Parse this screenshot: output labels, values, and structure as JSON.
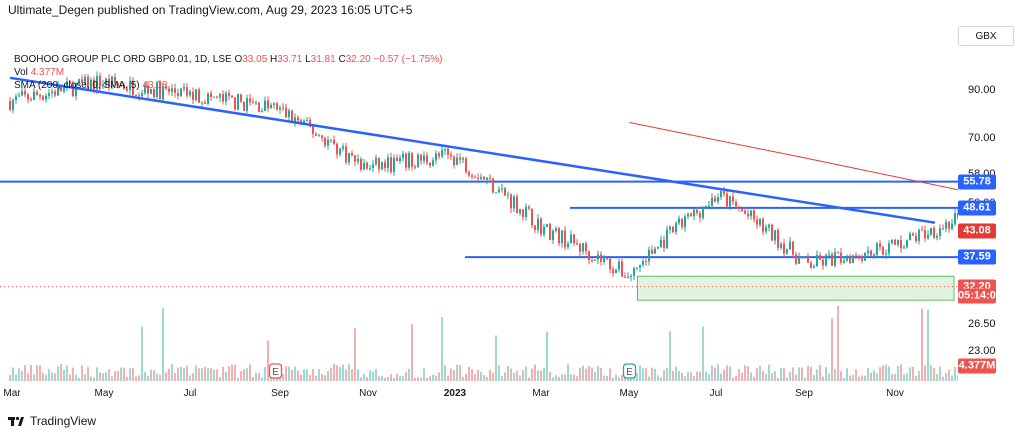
{
  "header": {
    "publisher": "Ultimate_Degen published on TradingView.com, Aug 29, 2023 16:05 UTC+5"
  },
  "legend": {
    "symbol": "BOOHOO GROUP PLC ORD GBP0.01, 1D, LSE",
    "open_label": "O",
    "open": "33.05",
    "high_label": "H",
    "high": "33.71",
    "low_label": "L",
    "low": "31.81",
    "close_label": "C",
    "close": "32.20",
    "change": "−0.57 (−1.75%)",
    "vol_label": "Vol",
    "vol": "4.377M",
    "sma_label": "SMA (200, close, 0, SMA, 5)",
    "sma": "43.08"
  },
  "currency": "GBX",
  "footer": {
    "brand": "TradingView"
  },
  "colors": {
    "up": "#26a69a",
    "down": "#ef5350",
    "trendline": "#2962ff",
    "sma": "#e53935",
    "zone_fill": "#dff3de",
    "zone_border": "#66bb6a"
  },
  "chart_data": {
    "type": "candlestick",
    "title": "BOOHOO GROUP PLC ORD GBP0.01, 1D, LSE",
    "yaxis": {
      "scale": "log",
      "range": [
        20.5,
        120
      ],
      "ticks": [
        "90.00",
        "70.00",
        "58.00",
        "50.00",
        "43.08",
        "30.00",
        "26.50",
        "23.00"
      ]
    },
    "xaxis": {
      "ticks": [
        "Mar",
        "May",
        "Jul",
        "Sep",
        "Nov",
        "2023",
        "Mar",
        "May",
        "Jul",
        "Sep",
        "Nov"
      ]
    },
    "price_path": [
      {
        "t": "Mar 2022",
        "p": 85
      },
      {
        "t": "Apr 2022",
        "p": 94
      },
      {
        "t": "May 2022",
        "p": 88
      },
      {
        "t": "Jun 2022",
        "p": 82
      },
      {
        "t": "Jul 2022",
        "p": 60
      },
      {
        "t": "Aug 2022",
        "p": 64
      },
      {
        "t": "Sep 2022",
        "p": 44
      },
      {
        "t": "Oct 2022",
        "p": 34
      },
      {
        "t": "Nov 2022",
        "p": 52
      },
      {
        "t": "Dec 2022",
        "p": 36
      },
      {
        "t": "Jan 2023",
        "p": 40
      },
      {
        "t": "Feb 2023",
        "p": 48
      },
      {
        "t": "Mar 2023",
        "p": 55
      },
      {
        "t": "Apr 2023",
        "p": 59
      },
      {
        "t": "May 2023",
        "p": 45
      },
      {
        "t": "Jun 2023",
        "p": 34
      },
      {
        "t": "Jul 2023",
        "p": 33.5
      },
      {
        "t": "Aug 2023",
        "p": 38.5
      },
      {
        "t": "Aug 29 2023",
        "p": 32.2
      }
    ],
    "sma200": [
      {
        "t": "Oct 2022",
        "p": 76
      },
      {
        "t": "Dec 2022",
        "p": 63
      },
      {
        "t": "Feb 2023",
        "p": 52
      },
      {
        "t": "Apr 2023",
        "p": 48
      },
      {
        "t": "Jun 2023",
        "p": 44.5
      },
      {
        "t": "Aug 2023",
        "p": 43.08
      }
    ],
    "horizontal_levels": [
      {
        "label": "55.78",
        "value": 55.78
      },
      {
        "label": "48.61",
        "value": 48.61
      },
      {
        "label": "37.59",
        "value": 37.59
      }
    ],
    "trendline": {
      "from": {
        "t": "Mar 2022",
        "p": 96
      },
      "to": {
        "t": "Oct 2023",
        "p": 45
      }
    },
    "support_zone": {
      "top": 34.0,
      "bottom": 30.0,
      "from": "Oct 2022",
      "to": "Sep 2023"
    },
    "price_labels": [
      {
        "label": "55.78",
        "value": 55.78,
        "color": "#2962ff"
      },
      {
        "label": "48.61",
        "value": 48.61,
        "color": "#2962ff"
      },
      {
        "label": "43.08",
        "value": 43.08,
        "color": "#e53935"
      },
      {
        "label": "37.59",
        "value": 37.59,
        "color": "#2962ff"
      },
      {
        "label": "32.20",
        "value": 32.2,
        "color": "#ef5350"
      },
      {
        "label": "05:14:08",
        "value": 30.6,
        "color": "#ef5350"
      },
      {
        "label": "4.377M",
        "value": 21.3,
        "color": "#ef5350"
      }
    ],
    "events": [
      {
        "t": "Jun 2022",
        "type": "earnings",
        "label": "E"
      },
      {
        "t": "Oct 2022",
        "type": "earnings",
        "label": "E"
      },
      {
        "t": "May 2023",
        "type": "earnings",
        "label": "E"
      },
      {
        "t": "Sep 2023",
        "type": "dividend",
        "label": "⚡"
      },
      {
        "t": "Oct 2023",
        "type": "earnings",
        "label": "E"
      }
    ],
    "legend": [
      "Vol 4.377M",
      "SMA (200, close, 0, SMA, 5) 43.08"
    ]
  }
}
